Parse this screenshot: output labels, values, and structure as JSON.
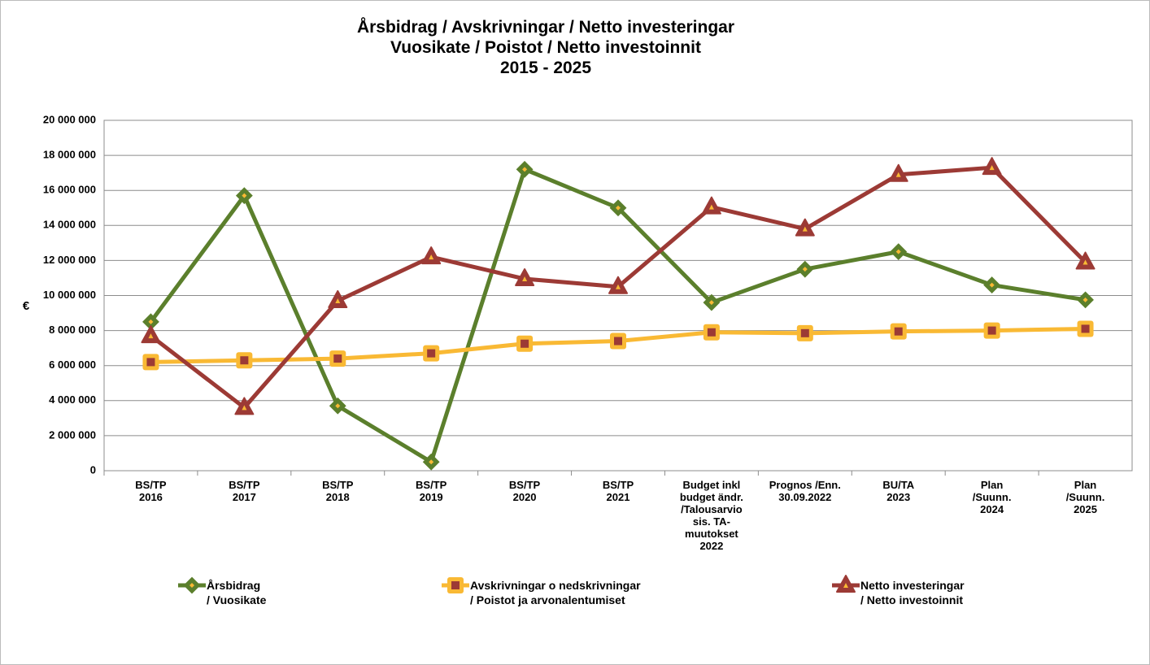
{
  "chart_data": {
    "type": "line",
    "title": "Årsbidrag / Avskrivningar / Netto investeringar\nVuosikate / Poistot / Netto investoinnit\n2015 - 2025",
    "ylabel": "€",
    "categories": [
      "BS/TP\n2016",
      "BS/TP\n2017",
      "BS/TP\n2018",
      "BS/TP\n2019",
      "BS/TP\n2020",
      "BS/TP\n2021",
      "Budget inkl\nbudget ändr.\n/Talousarvio\nsis. TA-\nmuutokset\n2022",
      "Prognos /Enn.\n30.09.2022",
      "BU/TA\n2023",
      "Plan\n/Suunn.\n2024",
      "Plan\n/Suunn.\n2025"
    ],
    "series": [
      {
        "name": "Årsbidrag\n/ Vuosikate",
        "color": "#5b7f2c",
        "marker": "diamond",
        "values": [
          8500000,
          15700000,
          3700000,
          500000,
          17200000,
          15000000,
          9600000,
          11500000,
          12500000,
          10600000,
          9750000
        ]
      },
      {
        "name": "Avskrivningar o nedskrivningar\n/ Poistot ja arvonalentumiset",
        "color": "#f9b934",
        "marker": "square",
        "values": [
          6200000,
          6300000,
          6400000,
          6700000,
          7250000,
          7400000,
          7900000,
          7850000,
          7950000,
          8000000,
          8100000
        ]
      },
      {
        "name": "Netto investeringar\n/ Netto investoinnit",
        "color": "#9c3a35",
        "marker": "triangle",
        "values": [
          7700000,
          3600000,
          9700000,
          12200000,
          10950000,
          10500000,
          15050000,
          13800000,
          16900000,
          17300000,
          11900000
        ]
      }
    ],
    "ylim": [
      0,
      20000000
    ],
    "yticks": [
      0,
      {
        "value": 2000000,
        "label": "2 000 000"
      },
      {
        "value": 4000000,
        "label": "4 000 000"
      },
      {
        "value": 6000000,
        "label": "6 000 000"
      },
      {
        "value": 8000000,
        "label": "8 000 000"
      },
      {
        "value": 10000000,
        "label": "10 000 000"
      },
      {
        "value": 12000000,
        "label": "12 000 000"
      },
      {
        "value": 14000000,
        "label": "14 000 000"
      },
      {
        "value": 16000000,
        "label": "16 000 000"
      },
      {
        "value": 18000000,
        "label": "18 000 000"
      },
      {
        "value": 20000000,
        "label": "20 000 000"
      }
    ],
    "grid": true,
    "legend": "bottom"
  }
}
